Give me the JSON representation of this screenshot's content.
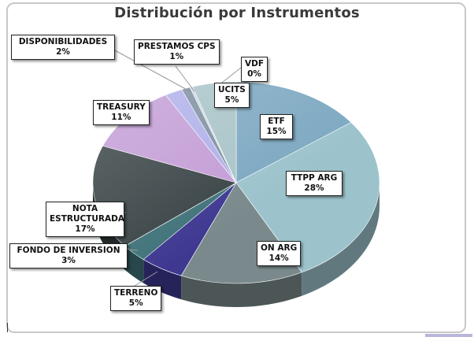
{
  "chart_data": {
    "type": "pie",
    "title": "Distribución por Instrumentos",
    "slices": [
      {
        "name": "ETF",
        "value": 15,
        "percent_label": "15%",
        "color": "#7ea9c2"
      },
      {
        "name": "TTPP ARG",
        "value": 28,
        "percent_label": "28%",
        "color": "#9cc3cc"
      },
      {
        "name": "ON ARG",
        "value": 14,
        "percent_label": "14%",
        "color": "#7a8a8c"
      },
      {
        "name": "TERRENO",
        "value": 5,
        "percent_label": "5%",
        "color": "#3e3891"
      },
      {
        "name": "FONDO DE INVERSION",
        "value": 3,
        "percent_label": "3%",
        "color": "#3f7279"
      },
      {
        "name": "NOTA ESTRUCTURADA",
        "value": 17,
        "percent_label": "17%",
        "color": "#3a4446"
      },
      {
        "name": "TREASURY",
        "value": 11,
        "percent_label": "11%",
        "color": "#c39dd6"
      },
      {
        "name": "DISPONIBILIDADES",
        "value": 2,
        "percent_label": "2%",
        "color": "#b1b0ea"
      },
      {
        "name": "PRESTAMOS CPS",
        "value": 1,
        "percent_label": "1%",
        "color": "#7f90a2"
      },
      {
        "name": "VDF",
        "value": 0.3,
        "percent_label": "0%",
        "color": "#c7d4dd"
      },
      {
        "name": "UCITS",
        "value": 5,
        "percent_label": "5%",
        "color": "#a9c4c8"
      }
    ],
    "start_angle_deg": 0,
    "direction": "clockwise",
    "style": "3d-tilted"
  }
}
